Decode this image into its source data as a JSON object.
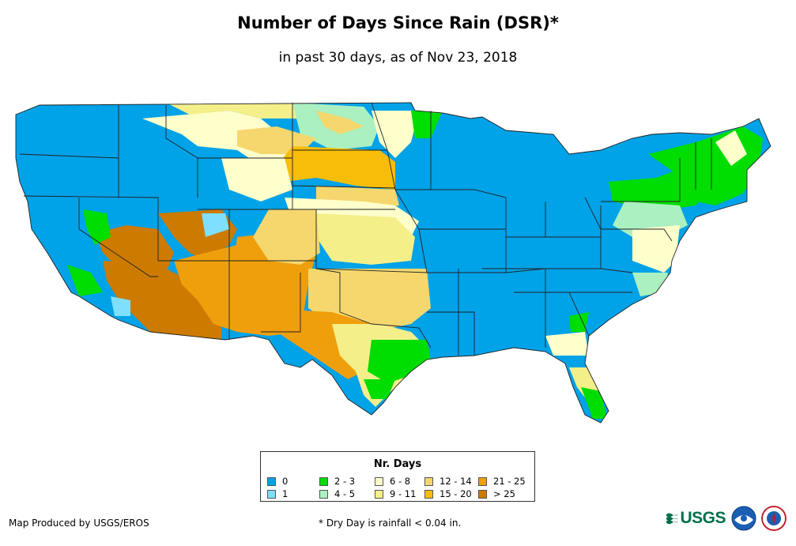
{
  "header": {
    "title": "Number of Days Since Rain (DSR)*",
    "subtitle": "in past 30 days, as of Nov 23, 2018"
  },
  "legend": {
    "title": "Nr. Days",
    "items": [
      {
        "label": "0",
        "color": "#00a2e8"
      },
      {
        "label": "1",
        "color": "#7fdfff"
      },
      {
        "label": "2 - 3",
        "color": "#00dd00"
      },
      {
        "label": "4 - 5",
        "color": "#aaf0c0"
      },
      {
        "label": "6 - 8",
        "color": "#ffffcc"
      },
      {
        "label": "9 - 11",
        "color": "#f5ef8a"
      },
      {
        "label": "12 - 14",
        "color": "#f5d76e"
      },
      {
        "label": "15 - 20",
        "color": "#f8bd08"
      },
      {
        "label": "21 - 25",
        "color": "#ef9f0c"
      },
      {
        "label": "> 25",
        "color": "#cc7a00"
      }
    ]
  },
  "footer": {
    "credit": "Map Produced by USGS/EROS",
    "note": "* Dry Day is rainfall < 0.04 in.",
    "usgs_logo_text": "USGS"
  },
  "logos": {
    "noaa_icon": "noaa-seal-icon",
    "nws_icon": "nws-seal-icon"
  }
}
